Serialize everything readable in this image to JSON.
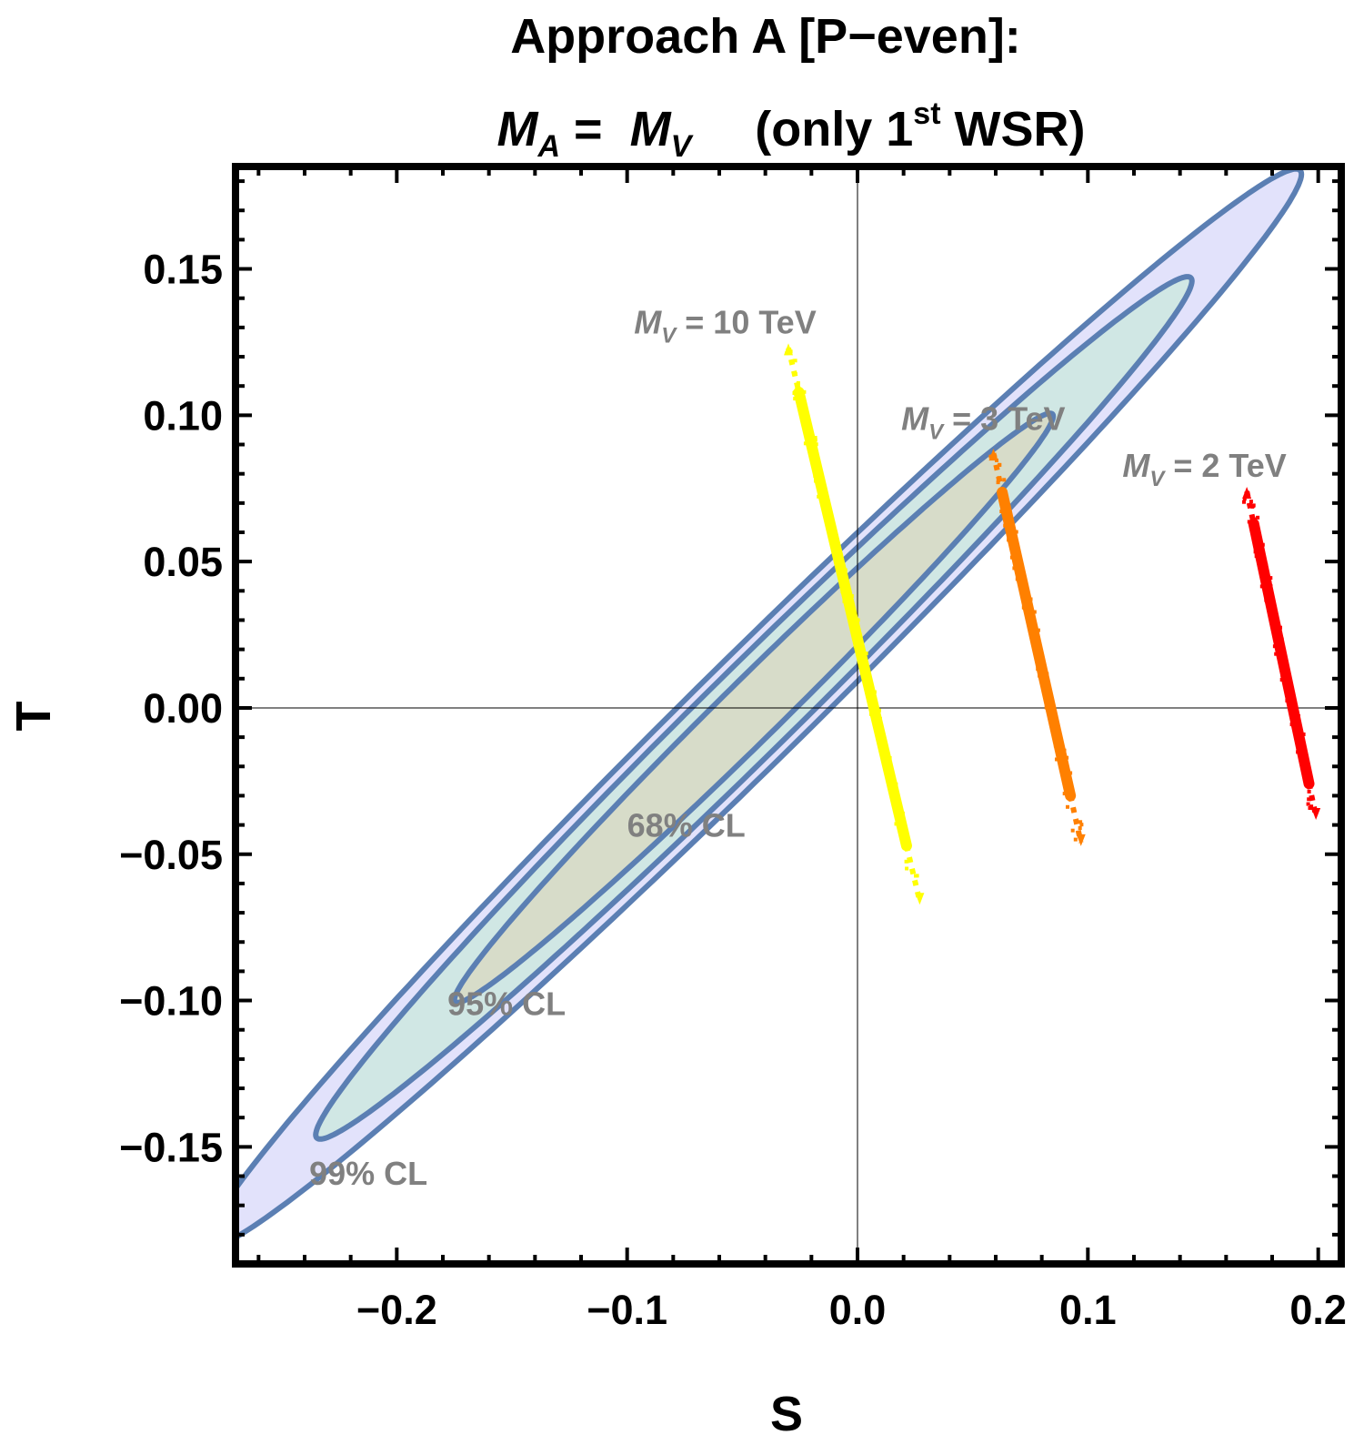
{
  "chart_data": {
    "type": "scatter",
    "title_line1": "Approach A [P−even]:",
    "title_line2": {
      "lhs_symbol": "M",
      "lhs_subscript": "A",
      "equals": " =  ",
      "rhs_symbol": "M",
      "rhs_subscript": "V",
      "paren_open": "(only 1",
      "superscript": "st",
      "paren_close": " WSR)"
    },
    "xlabel": "S",
    "ylabel": "T",
    "xlim": [
      -0.27,
      0.21
    ],
    "ylim": [
      -0.19,
      0.185
    ],
    "x_ticks": [
      -0.2,
      -0.1,
      0.0,
      0.1,
      0.2
    ],
    "x_tick_labels": [
      "−0.2",
      "−0.1",
      "0.0",
      "0.1",
      "0.2"
    ],
    "y_ticks": [
      -0.15,
      -0.1,
      -0.05,
      0.0,
      0.05,
      0.1,
      0.15
    ],
    "y_tick_labels": [
      "−0.15",
      "−0.10",
      "−0.05",
      "0.00",
      "0.05",
      "0.10",
      "0.15"
    ],
    "contours": [
      {
        "name": "99% CL",
        "label": "99% CL",
        "center": [
          -0.045,
          0.0
        ],
        "semi_major": 0.3,
        "semi_minor": 0.0205,
        "angle_deg": 37.7,
        "fill": "#e2e2fb",
        "stroke": "#5b7fb3",
        "label_at": [
          -0.238,
          -0.163
        ]
      },
      {
        "name": "95% CL",
        "label": "95% CL",
        "center": [
          -0.045,
          0.0
        ],
        "semi_major": 0.24,
        "semi_minor": 0.0166,
        "angle_deg": 37.7,
        "fill": "#d0e7e4",
        "stroke": "#5b7fb3",
        "label_at": [
          -0.178,
          -0.105
        ]
      },
      {
        "name": "68% CL",
        "label": "68% CL",
        "center": [
          -0.045,
          0.0
        ],
        "semi_major": 0.164,
        "semi_minor": 0.0113,
        "angle_deg": 37.7,
        "fill": "#d7dcc9",
        "stroke": "#5b7fb3",
        "label_at": [
          -0.1,
          -0.044
        ]
      }
    ],
    "series": [
      {
        "name": "M_V = 10 TeV",
        "label_symbol": "M",
        "label_subscript": "V",
        "label_value": " = 10 TeV",
        "color": "#ffff00",
        "segment": [
          [
            -0.03,
            0.123
          ],
          [
            0.027,
            -0.066
          ]
        ],
        "solid_range": [
          0.08,
          0.9
        ],
        "label_at": [
          -0.097,
          0.128
        ]
      },
      {
        "name": "M_V = 3 TeV",
        "label_symbol": "M",
        "label_subscript": "V",
        "label_value": " = 3 TeV",
        "color": "#ff8000",
        "segment": [
          [
            0.059,
            0.087
          ],
          [
            0.097,
            -0.046
          ]
        ],
        "solid_range": [
          0.1,
          0.88
        ],
        "label_at": [
          0.019,
          0.095
        ]
      },
      {
        "name": "M_V = 2 TeV",
        "label_symbol": "M",
        "label_subscript": "V",
        "label_value": " = 2 TeV",
        "color": "#ff0000",
        "segment": [
          [
            0.169,
            0.074
          ],
          [
            0.199,
            -0.037
          ]
        ],
        "solid_range": [
          0.1,
          0.9
        ],
        "label_at": [
          0.115,
          0.079
        ]
      }
    ],
    "grid": false,
    "origin_lines": true
  }
}
